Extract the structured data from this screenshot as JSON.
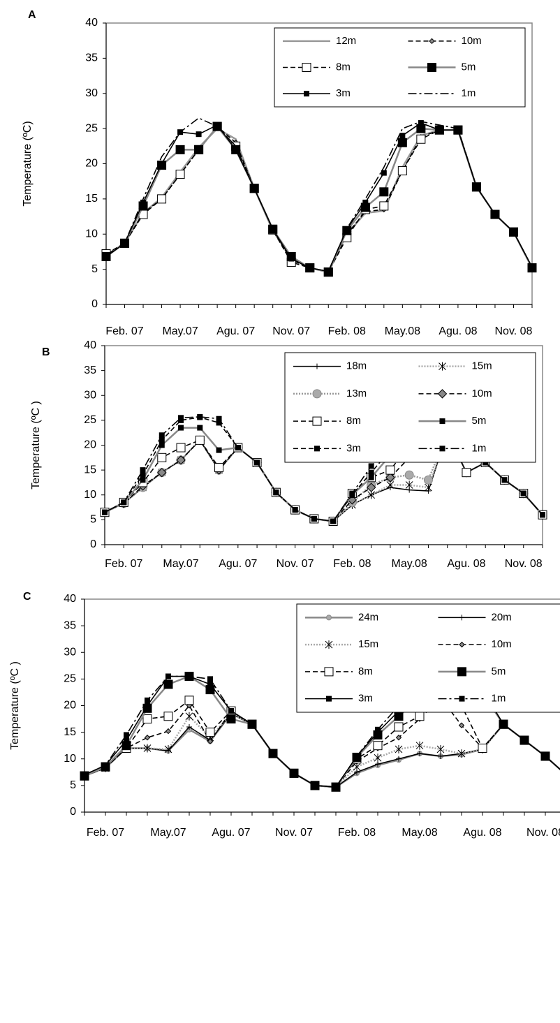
{
  "chart_data": [
    {
      "type": "line",
      "panel": "A",
      "y_label": "Temperature (ºC)",
      "ylim": [
        0,
        40
      ],
      "yticks": [
        0,
        5,
        10,
        15,
        20,
        25,
        30,
        35,
        40
      ],
      "legend": "upper right",
      "categories": [
        null,
        "Feb. 07",
        null,
        null,
        "May.07",
        null,
        null,
        "Agu. 07",
        null,
        null,
        "Nov. 07",
        null,
        null,
        "Feb. 08",
        null,
        null,
        "May.08",
        null,
        null,
        "Agu. 08",
        null,
        null,
        "Nov. 08",
        null
      ],
      "series": [
        {
          "name": "12m",
          "color": "#999999",
          "dash": "solid",
          "marker": "none",
          "values": [
            7,
            8.7,
            13,
            15.2,
            18.8,
            22.3,
            25,
            23.5,
            16.5,
            10.5,
            6.5,
            5.2,
            4.6,
            10,
            13,
            13.3,
            19.5,
            24,
            24.8,
            24.8,
            16.7,
            12.8,
            10.3,
            5.2
          ]
        },
        {
          "name": "10m",
          "color": "#000000",
          "dash": "dash",
          "marker": "diamond-small",
          "values": [
            7,
            8.7,
            13,
            15,
            18.5,
            22,
            25.3,
            23,
            16.5,
            10.6,
            6.3,
            5.2,
            4.6,
            10,
            13.2,
            13.5,
            19,
            23.8,
            24.8,
            24.8,
            16.7,
            12.8,
            10.3,
            5.2
          ]
        },
        {
          "name": "8m",
          "color": "#000000",
          "dash": "dash",
          "marker": "open-square",
          "values": [
            7.2,
            8.7,
            12.8,
            15,
            18.5,
            22,
            25.3,
            22.5,
            16.5,
            10.6,
            6,
            5.2,
            4.6,
            9.5,
            13.5,
            14,
            19,
            23.5,
            24.8,
            24.8,
            16.7,
            12.8,
            10.3,
            5.2
          ]
        },
        {
          "name": "5m",
          "color": "#888888",
          "dash": "solid",
          "marker": "square",
          "values": [
            6.8,
            8.7,
            14,
            19.8,
            22,
            22,
            25.3,
            22,
            16.5,
            10.7,
            6.8,
            5.2,
            4.6,
            10.5,
            13.8,
            16,
            23,
            25,
            24.8,
            24.8,
            16.7,
            12.8,
            10.3,
            5.2
          ]
        },
        {
          "name": "3m",
          "color": "#000000",
          "dash": "solid",
          "marker": "small-square",
          "values": [
            6.8,
            8.7,
            14.5,
            20,
            24.5,
            24.2,
            25.5,
            22,
            16.5,
            10.7,
            6.5,
            5.2,
            4.7,
            10.7,
            14.5,
            18.7,
            24,
            25.8,
            24.8,
            24.8,
            16.7,
            12.8,
            10.3,
            5.3
          ]
        },
        {
          "name": "1m",
          "color": "#000000",
          "dash": "dashdot",
          "marker": "none",
          "values": [
            7,
            8.7,
            15,
            21,
            24.5,
            26.5,
            25.3,
            22.5,
            16.5,
            10.7,
            6.5,
            5.2,
            4.7,
            10.8,
            15,
            19.5,
            25,
            26,
            25.5,
            25,
            16.7,
            12.8,
            10.3,
            5.3
          ]
        }
      ]
    },
    {
      "type": "line",
      "panel": "B",
      "y_label": "Temperature (ºC )",
      "ylim": [
        0,
        40
      ],
      "yticks": [
        0,
        5,
        10,
        15,
        20,
        25,
        30,
        35,
        40
      ],
      "legend": "upper right",
      "categories": [
        null,
        "Feb. 07",
        null,
        null,
        "May.07",
        null,
        null,
        "Agu. 07",
        null,
        null,
        "Nov. 07",
        null,
        null,
        "Feb. 08",
        null,
        null,
        "May.08",
        null,
        null,
        "Agu. 08",
        null,
        null,
        "Nov. 08",
        null
      ],
      "series": [
        {
          "name": "18m",
          "color": "#000000",
          "dash": "solid",
          "marker": "plus",
          "values": [
            6.5,
            8.3,
            11.5,
            14.5,
            17,
            21,
            15,
            19.5,
            16.5,
            10.5,
            7,
            5.2,
            4.7,
            8,
            10,
            11.5,
            11,
            10.8,
            22.5,
            14.5,
            16.5,
            13,
            10.3,
            6
          ]
        },
        {
          "name": "15m",
          "color": "#aaaaaa",
          "dash": "dot",
          "marker": "star",
          "values": [
            6.5,
            8.3,
            11.5,
            14.5,
            17,
            21,
            15,
            19.5,
            16.5,
            10.5,
            7,
            5.2,
            4.7,
            8,
            10,
            12,
            12,
            11.5,
            22.5,
            14.5,
            16.5,
            13,
            10.3,
            6
          ]
        },
        {
          "name": "13m",
          "color": "#999999",
          "dash": "dot",
          "marker": "circle",
          "values": [
            6.5,
            8.3,
            11.5,
            14.5,
            17,
            21,
            15,
            19.5,
            16.5,
            10.5,
            7,
            5.2,
            4.7,
            8.5,
            12,
            13.5,
            14,
            13,
            22.5,
            14.5,
            16.5,
            13,
            10.3,
            6
          ]
        },
        {
          "name": "10m",
          "color": "#000000",
          "dash": "dash",
          "marker": "diamond",
          "values": [
            6.5,
            8.3,
            11.8,
            14.5,
            17,
            21,
            15,
            19.5,
            16.5,
            10.5,
            7,
            5.2,
            4.7,
            9,
            11.5,
            13.5,
            17.5,
            22,
            22.5,
            14.5,
            16.5,
            13,
            10.3,
            6
          ]
        },
        {
          "name": "8m",
          "color": "#000000",
          "dash": "dash",
          "marker": "open-square",
          "values": [
            6.5,
            8.5,
            12.5,
            17.5,
            19.5,
            21,
            15.5,
            19.5,
            16.5,
            10.5,
            7,
            5.2,
            4.7,
            10.3,
            13.5,
            15,
            20,
            23,
            22.5,
            14.5,
            16.5,
            13,
            10.3,
            6
          ]
        },
        {
          "name": "5m",
          "color": "#888888",
          "dash": "solid",
          "marker": "small-square",
          "values": [
            6.5,
            8.5,
            13,
            20,
            23.5,
            23.5,
            19,
            19.5,
            16.5,
            10.5,
            7,
            5.2,
            4.7,
            10,
            13.5,
            18,
            23.5,
            25,
            24,
            22.5,
            16.5,
            13,
            10.3,
            6
          ]
        },
        {
          "name": "3m",
          "color": "#000000",
          "dash": "dash",
          "marker": "small-square",
          "values": [
            6.5,
            8.5,
            14,
            21,
            25,
            25.6,
            24.5,
            19.5,
            16.5,
            10.5,
            7,
            5.2,
            4.7,
            10,
            14.5,
            19,
            24,
            25.8,
            25.5,
            22.5,
            16.5,
            13,
            10.3,
            6
          ]
        },
        {
          "name": "1m",
          "color": "#000000",
          "dash": "dashdot",
          "marker": "small-square",
          "values": [
            6.5,
            8.5,
            15,
            22,
            25.5,
            25.7,
            25.3,
            19.5,
            16.5,
            10.5,
            7,
            5.2,
            4.7,
            10.3,
            15.8,
            19.5,
            24.5,
            26.5,
            25.7,
            22.5,
            16.5,
            13,
            10.3,
            6
          ]
        }
      ]
    },
    {
      "type": "line",
      "panel": "C",
      "y_label": "Temperature (ºC )",
      "ylim": [
        0,
        40
      ],
      "yticks": [
        0,
        5,
        10,
        15,
        20,
        25,
        30,
        35,
        40
      ],
      "legend": "upper right",
      "categories": [
        null,
        "Feb. 07",
        null,
        null,
        "May.07",
        null,
        null,
        "Agu. 07",
        null,
        null,
        "Nov. 07",
        null,
        null,
        "Feb. 08",
        null,
        null,
        "May.08",
        null,
        null,
        "Agu. 08",
        null,
        null,
        "Nov. 08",
        null
      ],
      "series": [
        {
          "name": "24m",
          "color": "#888888",
          "dash": "solid",
          "marker": "circle-small",
          "values": [
            6.8,
            8.3,
            12,
            12,
            11.5,
            15.5,
            13.3,
            18.5,
            16.5,
            11,
            7.3,
            5,
            4.7,
            7.3,
            8.8,
            9.8,
            11,
            10.5,
            10.8,
            11.8,
            16.5,
            13.5,
            10.5,
            7
          ]
        },
        {
          "name": "20m",
          "color": "#000000",
          "dash": "solid",
          "marker": "plus",
          "values": [
            6.8,
            8.3,
            12,
            12,
            11.5,
            16,
            13.5,
            18.5,
            16.5,
            11,
            7.3,
            5,
            4.7,
            7.5,
            9,
            10,
            11,
            10.5,
            11,
            11.8,
            16.5,
            13.5,
            10.5,
            7
          ]
        },
        {
          "name": "15m",
          "color": "#aaaaaa",
          "dash": "dot",
          "marker": "star",
          "values": [
            6.8,
            8.3,
            12,
            12,
            11.8,
            18,
            14,
            18.5,
            16.5,
            11,
            7.3,
            5,
            4.7,
            8.5,
            10.2,
            11.8,
            12.5,
            11.8,
            11,
            11.8,
            16.5,
            13.5,
            10.5,
            7
          ]
        },
        {
          "name": "10m",
          "color": "#000000",
          "dash": "dash",
          "marker": "diamond-small",
          "values": [
            6.8,
            8.3,
            12,
            14,
            15.2,
            20,
            13.3,
            19,
            16.5,
            11,
            7.3,
            5,
            4.7,
            9.5,
            12,
            14,
            17.5,
            21.5,
            16.3,
            12,
            16.5,
            13.5,
            10.5,
            7
          ]
        },
        {
          "name": "8m",
          "color": "#000000",
          "dash": "dash",
          "marker": "open-square",
          "values": [
            6.8,
            8.5,
            12,
            17.5,
            18,
            21,
            15,
            19,
            16.5,
            11,
            7.3,
            5,
            4.7,
            10,
            12.5,
            16,
            18,
            23,
            20,
            12,
            16.5,
            13.5,
            10.5,
            7
          ]
        },
        {
          "name": "5m",
          "color": "#888888",
          "dash": "solid",
          "marker": "square",
          "values": [
            6.8,
            8.5,
            12.5,
            19.5,
            24,
            25.5,
            23,
            17.5,
            16.5,
            11,
            7.3,
            5,
            4.7,
            10.3,
            14.5,
            18,
            21.5,
            24,
            25,
            22.3,
            16.5,
            13.5,
            10.5,
            7
          ]
        },
        {
          "name": "3m",
          "color": "#000000",
          "dash": "solid",
          "marker": "small-square",
          "values": [
            7,
            8.8,
            13.5,
            20,
            25.5,
            25.5,
            24,
            19,
            16.5,
            11,
            7.3,
            5,
            4.7,
            10.5,
            15,
            19,
            23.5,
            25,
            25.5,
            23,
            16.5,
            13.5,
            10.5,
            7
          ]
        },
        {
          "name": "1m",
          "color": "#000000",
          "dash": "dashdot",
          "marker": "small-square",
          "values": [
            7,
            8.8,
            14.5,
            21,
            25.5,
            25.5,
            25,
            19,
            16.5,
            11,
            7.3,
            5,
            4.7,
            10.5,
            15.5,
            20,
            24,
            25.5,
            25.5,
            23,
            16.5,
            13.5,
            10.5,
            7
          ]
        }
      ]
    }
  ]
}
